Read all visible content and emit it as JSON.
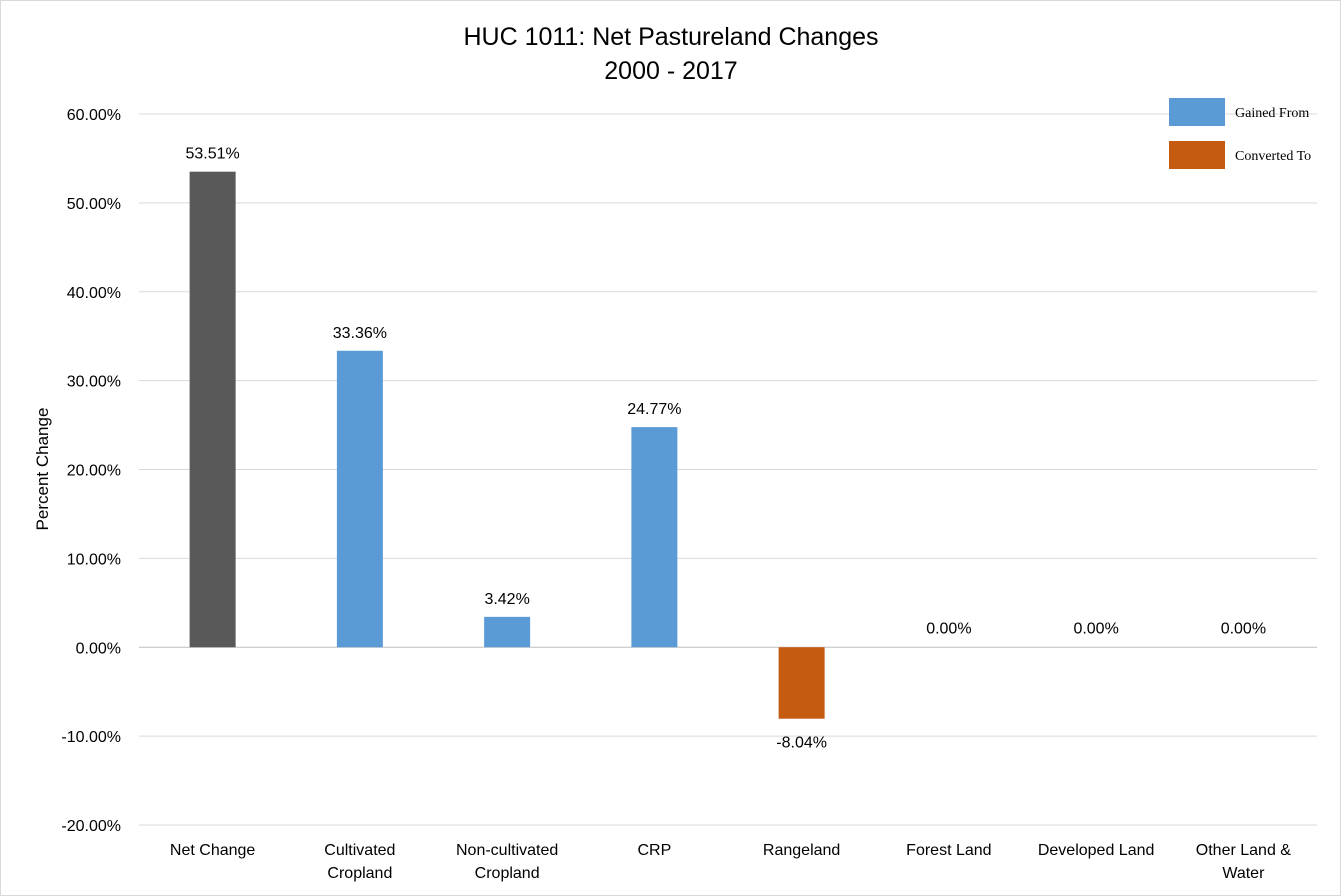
{
  "chart_data": {
    "type": "bar",
    "title_lines": [
      "HUC 1011: Net Pastureland Changes",
      "2000 - 2017"
    ],
    "ylabel": "Percent Change",
    "xlabel": "",
    "ylim": [
      -20,
      60
    ],
    "ytick_step": 10,
    "ytick_labels": [
      "60.00%",
      "50.00%",
      "40.00%",
      "30.00%",
      "20.00%",
      "10.00%",
      "0.00%",
      "-10.00%",
      "-20.00%"
    ],
    "grid": true,
    "legend_position": "top-right",
    "categories": [
      [
        "Net Change"
      ],
      [
        "Cultivated",
        "Cropland"
      ],
      [
        "Non-cultivated",
        "Cropland"
      ],
      [
        "CRP"
      ],
      [
        "Rangeland"
      ],
      [
        "Forest Land"
      ],
      [
        "Developed Land"
      ],
      [
        "Other Land &",
        "Water"
      ]
    ],
    "values": [
      53.51,
      33.36,
      3.42,
      24.77,
      -8.04,
      0.0,
      0.0,
      0.0
    ],
    "data_labels": [
      "53.51%",
      "33.36%",
      "3.42%",
      "24.77%",
      "-8.04%",
      "0.00%",
      "0.00%",
      "0.00%"
    ],
    "bar_groups": [
      "net",
      "gained",
      "gained",
      "gained",
      "converted",
      "converted",
      "converted",
      "converted"
    ],
    "legend": [
      {
        "key": "gained",
        "label": "Gained From",
        "color": "#5b9bd5"
      },
      {
        "key": "converted",
        "label": "Converted To",
        "color": "#c55a11"
      }
    ],
    "colors": {
      "net": "#595959",
      "gained": "#5b9bd5",
      "converted": "#c55a11",
      "grid": "#d9d9d9",
      "axis": "#bfbfbf"
    }
  }
}
